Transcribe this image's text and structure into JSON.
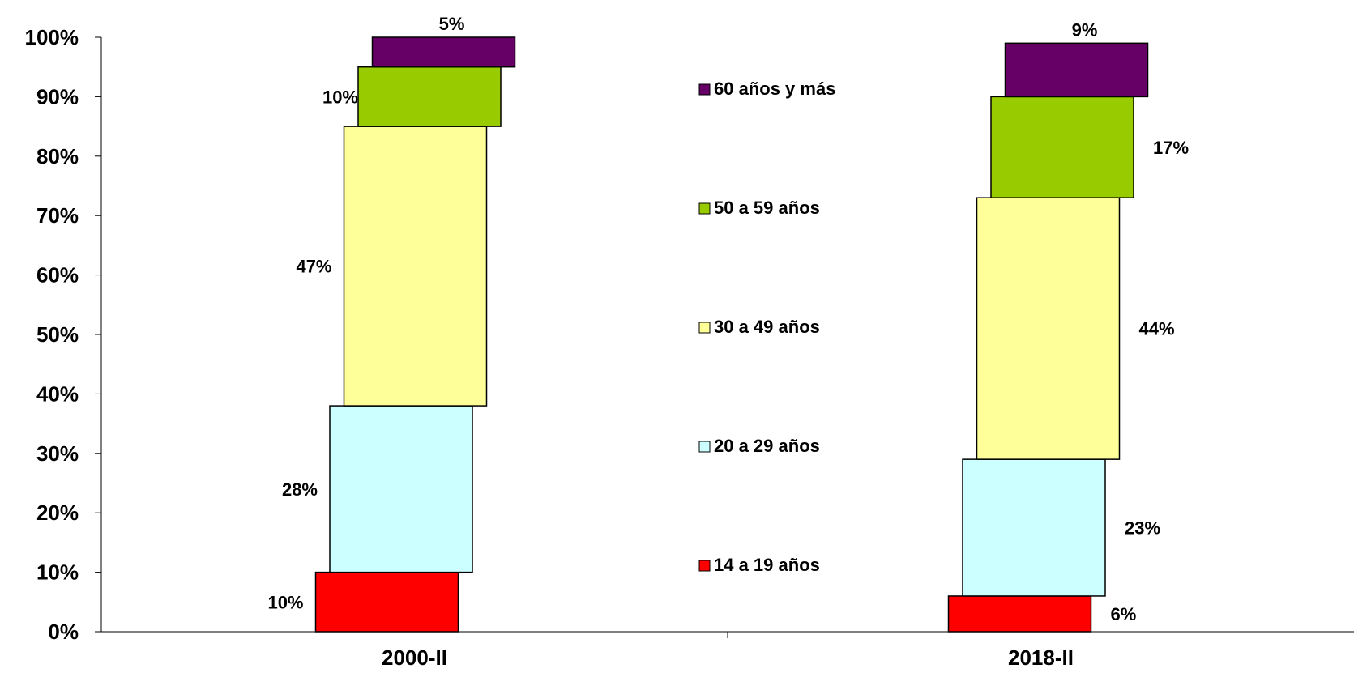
{
  "chart_data": {
    "type": "bar",
    "stacked": true,
    "categories": [
      "2000-II",
      "2018-II"
    ],
    "series": [
      {
        "name": "14 a 19 años",
        "color": "#ff0000",
        "values": [
          10,
          6
        ],
        "labels": [
          "10%",
          "6%"
        ]
      },
      {
        "name": "20 a 29 años",
        "color": "#ccffff",
        "values": [
          28,
          23
        ],
        "labels": [
          "28%",
          "23%"
        ]
      },
      {
        "name": "30 a 49 años",
        "color": "#ffff99",
        "values": [
          47,
          44
        ],
        "labels": [
          "47%",
          "44%"
        ]
      },
      {
        "name": "50 a 59 años",
        "color": "#99cc00",
        "values": [
          10,
          17
        ],
        "labels": [
          "10%",
          "17%"
        ]
      },
      {
        "name": "60 años y más",
        "color": "#660066",
        "values": [
          5,
          9
        ],
        "labels": [
          "5%",
          "9%"
        ]
      }
    ],
    "ylim": [
      0,
      100
    ],
    "yticks": [
      "0%",
      "10%",
      "20%",
      "30%",
      "40%",
      "50%",
      "60%",
      "70%",
      "80%",
      "90%",
      "100%"
    ],
    "legend_position": "center",
    "grid": false,
    "title": "",
    "xlabel": "",
    "ylabel": ""
  }
}
